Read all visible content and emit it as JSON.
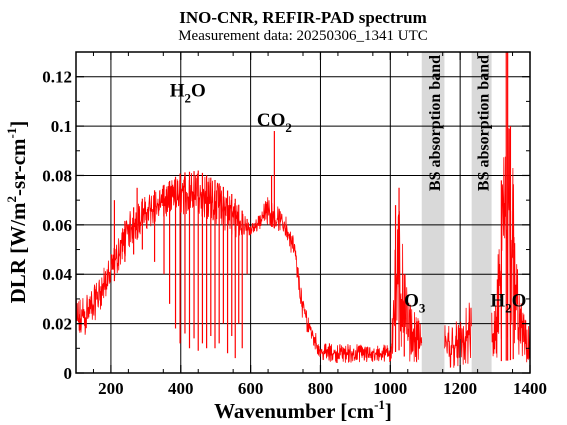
{
  "chart_data": {
    "type": "line",
    "title": "INO-CNR, REFIR-PAD spectrum",
    "subtitle": "Measurement data: 20250306_1341 UTC",
    "xlabel": {
      "main": "Wavenumber [cm",
      "sup": "-1",
      "tail": "]"
    },
    "ylabel": {
      "part1": "DLR [W/m",
      "sup": "2",
      "part2": "-sr-cm",
      "sup2": "-1",
      "tail": "]"
    },
    "xlim": [
      100,
      1400
    ],
    "ylim": [
      0,
      0.13
    ],
    "x_ticks": [
      200,
      400,
      600,
      800,
      1000,
      1200,
      1400
    ],
    "x_tick_labels": [
      "200",
      "400",
      "600",
      "800",
      "1000",
      "1200",
      "1400"
    ],
    "y_ticks": [
      0,
      0.02,
      0.04,
      0.06,
      0.08,
      0.1,
      0.12
    ],
    "y_tick_labels": [
      "0",
      "0.02",
      "0.04",
      "0.06",
      "0.08",
      "0.1",
      "0.12"
    ],
    "grid": true,
    "series_color": "#ff0000",
    "bands": [
      {
        "label": "BS absorption band",
        "x0": 1090,
        "x1": 1155
      },
      {
        "label": "BS absorption band",
        "x0": 1233,
        "x1": 1290
      }
    ],
    "annotations": [
      {
        "id": "h2o-left",
        "main": "H",
        "sub": "2",
        "tail": "O",
        "x": 420,
        "y": 0.112
      },
      {
        "id": "co2",
        "main": "CO",
        "sub": "2",
        "tail": "",
        "x": 668,
        "y": 0.1
      },
      {
        "id": "o3",
        "main": "O",
        "sub": "3",
        "tail": "",
        "x": 1070,
        "y": 0.027
      },
      {
        "id": "h2o-right",
        "main": "H",
        "sub": "2",
        "tail": "O",
        "x": 1338,
        "y": 0.027
      }
    ],
    "spectrum_envelope": {
      "x": [
        100,
        150,
        200,
        250,
        300,
        350,
        400,
        450,
        500,
        550,
        600,
        625,
        650,
        675,
        700,
        725,
        750,
        800,
        850,
        900,
        950,
        1000,
        1020,
        1050,
        1080,
        1160,
        1200,
        1230,
        1300,
        1320,
        1340,
        1360,
        1380,
        1400
      ],
      "upper": [
        0.03,
        0.035,
        0.048,
        0.065,
        0.072,
        0.076,
        0.081,
        0.082,
        0.078,
        0.072,
        0.06,
        0.065,
        0.072,
        0.068,
        0.064,
        0.055,
        0.03,
        0.012,
        0.012,
        0.012,
        0.011,
        0.012,
        0.075,
        0.03,
        0.022,
        0.02,
        0.022,
        0.03,
        0.025,
        0.08,
        0.135,
        0.05,
        0.025,
        0.018
      ],
      "lower": [
        0.01,
        0.02,
        0.034,
        0.05,
        0.058,
        0.062,
        0.064,
        0.064,
        0.06,
        0.055,
        0.055,
        0.058,
        0.06,
        0.058,
        0.055,
        0.045,
        0.02,
        0.005,
        0.004,
        0.004,
        0.004,
        0.004,
        0.01,
        0.005,
        0.003,
        0.002,
        0.002,
        0.002,
        0.003,
        0.005,
        0.005,
        0.006,
        0.004,
        0.002
      ]
    },
    "absorption_lines": [
      {
        "x": 240,
        "min": 0.045
      },
      {
        "x": 265,
        "min": 0.048
      },
      {
        "x": 290,
        "min": 0.05
      },
      {
        "x": 325,
        "min": 0.045
      },
      {
        "x": 352,
        "min": 0.04
      },
      {
        "x": 368,
        "min": 0.028
      },
      {
        "x": 385,
        "min": 0.018
      },
      {
        "x": 398,
        "min": 0.012
      },
      {
        "x": 412,
        "min": 0.016
      },
      {
        "x": 425,
        "min": 0.01
      },
      {
        "x": 438,
        "min": 0.014
      },
      {
        "x": 450,
        "min": 0.009
      },
      {
        "x": 462,
        "min": 0.012
      },
      {
        "x": 474,
        "min": 0.01
      },
      {
        "x": 486,
        "min": 0.015
      },
      {
        "x": 498,
        "min": 0.01
      },
      {
        "x": 510,
        "min": 0.012
      },
      {
        "x": 522,
        "min": 0.02
      },
      {
        "x": 534,
        "min": 0.008
      },
      {
        "x": 546,
        "min": 0.015
      },
      {
        "x": 556,
        "min": 0.006
      },
      {
        "x": 566,
        "min": 0.02
      },
      {
        "x": 576,
        "min": 0.01
      },
      {
        "x": 590,
        "min": 0.04
      }
    ],
    "spikes": [
      {
        "x": 210,
        "y": 0.07
      },
      {
        "x": 275,
        "y": 0.075
      },
      {
        "x": 668,
        "y": 0.098
      },
      {
        "x": 660,
        "y": 0.08
      },
      {
        "x": 1015,
        "y": 0.068
      },
      {
        "x": 1025,
        "y": 0.075
      },
      {
        "x": 1040,
        "y": 0.04
      },
      {
        "x": 1318,
        "y": 0.078
      },
      {
        "x": 1332,
        "y": 0.13
      },
      {
        "x": 1336,
        "y": 0.135
      },
      {
        "x": 1344,
        "y": 0.1
      },
      {
        "x": 1352,
        "y": 0.05
      }
    ]
  }
}
